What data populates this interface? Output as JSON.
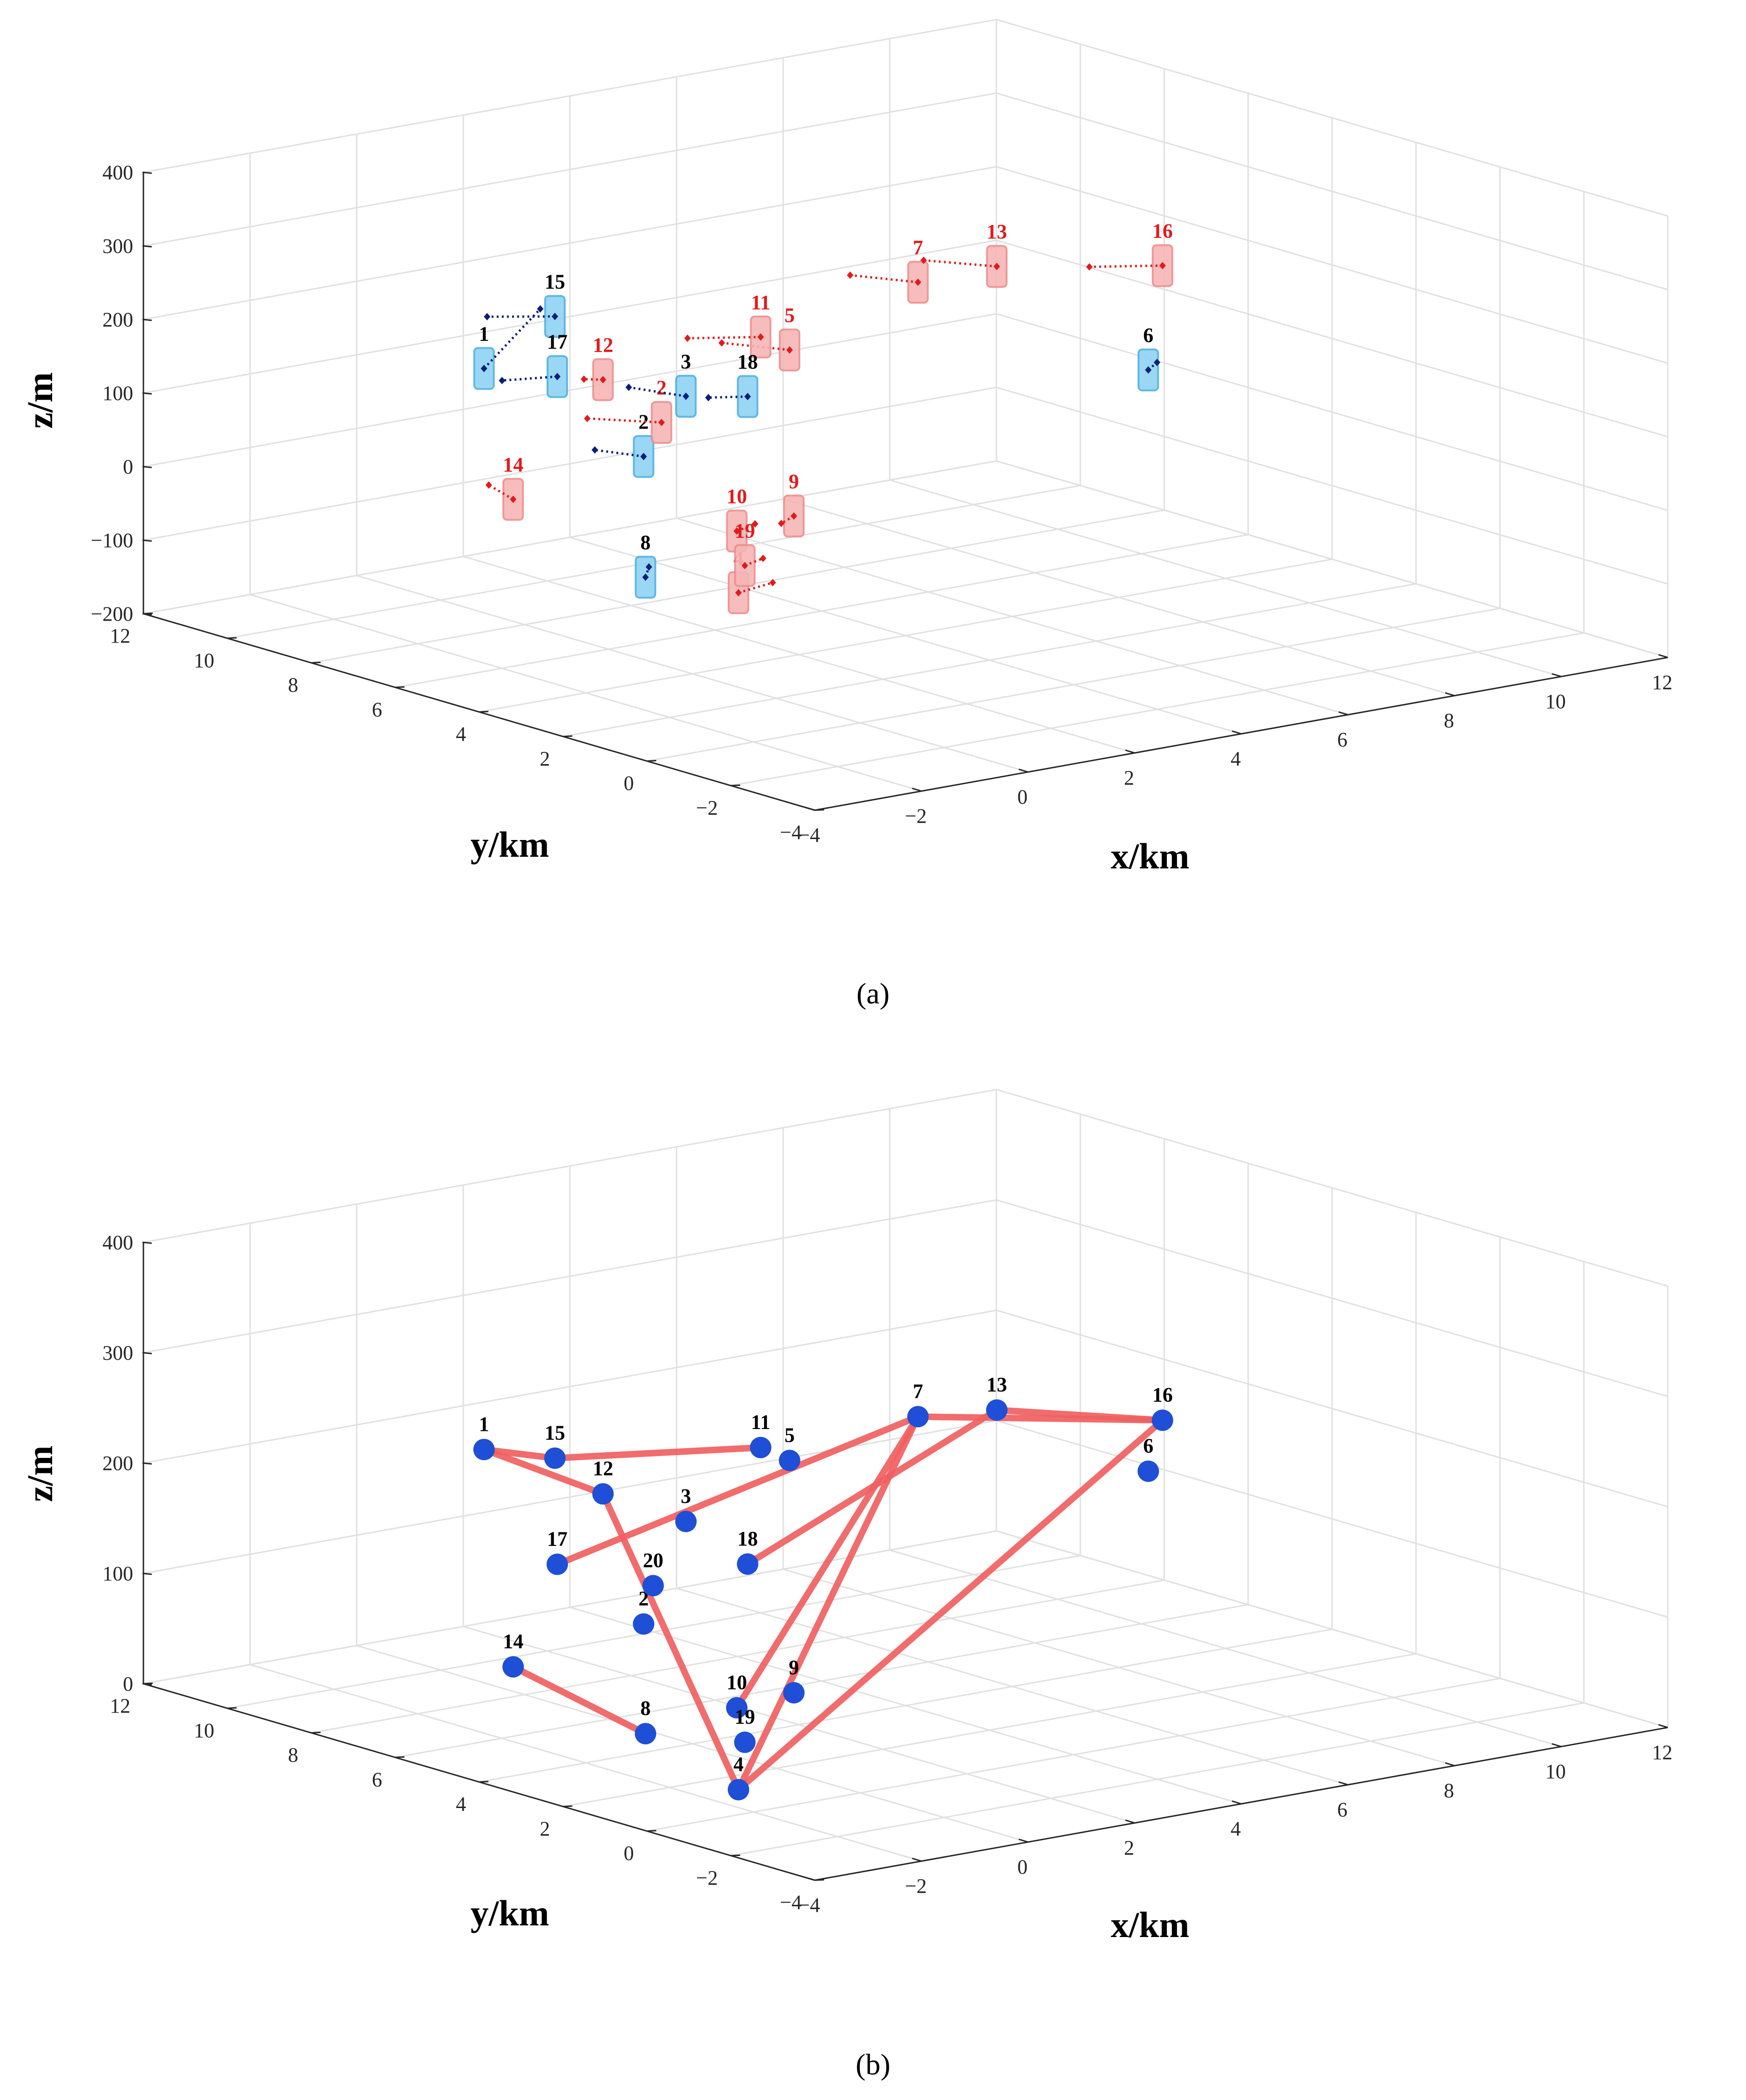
{
  "chart_data": [
    {
      "type": "scatter",
      "panel": "a",
      "caption": "(a)",
      "xlabel": "x/km",
      "ylabel": "y/km",
      "zlabel": "z/m",
      "xlim": [
        -4,
        12
      ],
      "ylim": [
        -4,
        12
      ],
      "zlim": [
        -200,
        400
      ],
      "x_ticks": [
        "−4",
        "−2",
        "0",
        "2",
        "4",
        "6",
        "8",
        "10",
        "12"
      ],
      "y_ticks": [
        "12",
        "10",
        "8",
        "6",
        "4",
        "2",
        "0",
        "−2",
        "−4"
      ],
      "z_ticks": [
        "400",
        "300",
        "200",
        "100",
        "0",
        "−100",
        "−200"
      ],
      "grid": true,
      "colors": {
        "red_group": "#e31a1c",
        "blue_group": "#0a1f7a",
        "red_box": "#f7b6b6",
        "blue_box": "#8fd3f4"
      },
      "points": [
        {
          "label": "1",
          "group": "blue"
        },
        {
          "label": "2",
          "group": "blue"
        },
        {
          "label": "2",
          "group": "red"
        },
        {
          "label": "3",
          "group": "blue"
        },
        {
          "label": "4",
          "group": "red"
        },
        {
          "label": "5",
          "group": "red"
        },
        {
          "label": "6",
          "group": "blue"
        },
        {
          "label": "7",
          "group": "red"
        },
        {
          "label": "8",
          "group": "blue"
        },
        {
          "label": "9",
          "group": "red"
        },
        {
          "label": "10",
          "group": "red"
        },
        {
          "label": "11",
          "group": "red"
        },
        {
          "label": "12",
          "group": "red"
        },
        {
          "label": "13",
          "group": "red"
        },
        {
          "label": "14",
          "group": "red"
        },
        {
          "label": "15",
          "group": "blue"
        },
        {
          "label": "16",
          "group": "red"
        },
        {
          "label": "17",
          "group": "blue"
        },
        {
          "label": "18",
          "group": "blue"
        },
        {
          "label": "19",
          "group": "red"
        }
      ]
    },
    {
      "type": "scatter",
      "panel": "b",
      "caption": "(b)",
      "xlabel": "x/km",
      "ylabel": "y/km",
      "zlabel": "z/m",
      "xlim": [
        -4,
        12
      ],
      "ylim": [
        -4,
        12
      ],
      "zlim": [
        0,
        400
      ],
      "x_ticks": [
        "−4",
        "−2",
        "0",
        "2",
        "4",
        "6",
        "8",
        "10",
        "12"
      ],
      "y_ticks": [
        "12",
        "10",
        "8",
        "6",
        "4",
        "2",
        "0",
        "−2",
        "−4"
      ],
      "z_ticks": [
        "400",
        "300",
        "200",
        "100",
        "0"
      ],
      "grid": true,
      "colors": {
        "node": "#1f4fd6",
        "link": "#f06060"
      },
      "points": [
        "1",
        "2",
        "3",
        "4",
        "5",
        "6",
        "7",
        "8",
        "9",
        "10",
        "11",
        "12",
        "13",
        "14",
        "15",
        "16",
        "17",
        "18",
        "19",
        "20"
      ],
      "links": [
        [
          "4",
          "7"
        ],
        [
          "4",
          "12"
        ],
        [
          "4",
          "16"
        ],
        [
          "7",
          "16"
        ],
        [
          "7",
          "17"
        ],
        [
          "7",
          "10"
        ],
        [
          "13",
          "16"
        ],
        [
          "13",
          "18"
        ],
        [
          "12",
          "1"
        ],
        [
          "1",
          "15"
        ],
        [
          "15",
          "11"
        ],
        [
          "8",
          "14"
        ]
      ]
    }
  ]
}
